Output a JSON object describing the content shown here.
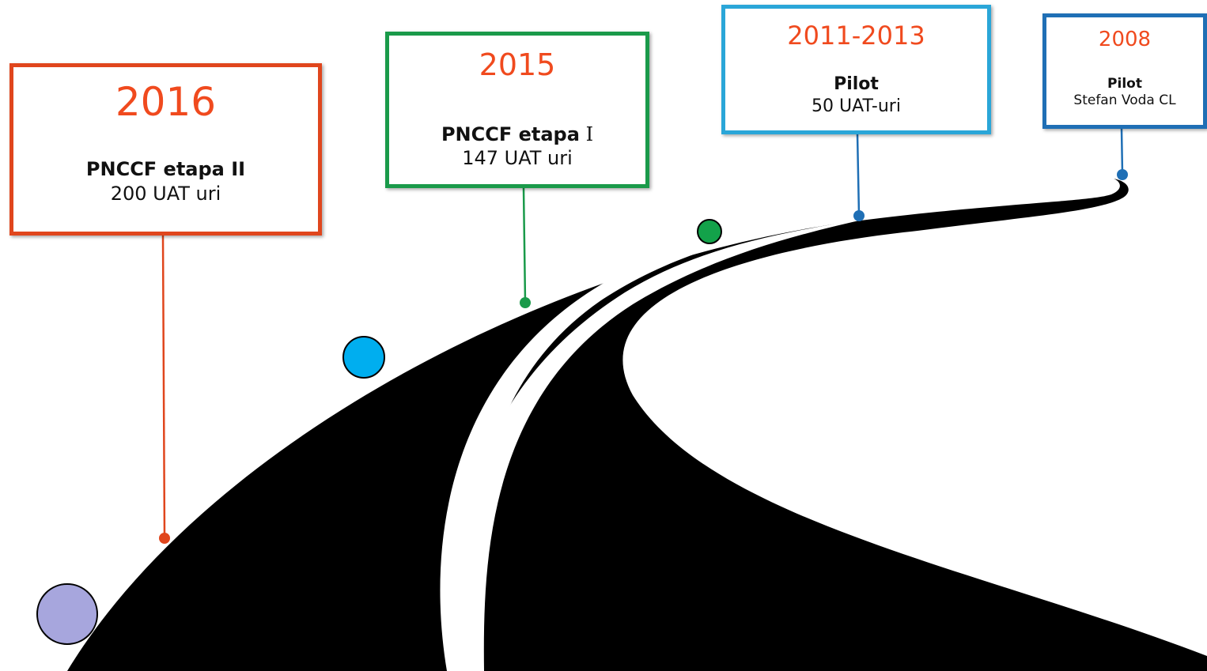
{
  "colors": {
    "road": "#000000",
    "card_2016": "#e0461d",
    "card_2015": "#1a9a4a",
    "card_2011": "#2aa6d8",
    "card_2008": "#1f6fb5",
    "year_text": "#f04a1e",
    "dot_lavender": "#a7a6dd",
    "dot_cyan": "#00aeef",
    "dot_green": "#13a24a"
  },
  "milestones": [
    {
      "id": "2016",
      "year": "2016",
      "title": "PNCCF etapa II",
      "title_suffix": "",
      "subtitle": "200 UAT uri"
    },
    {
      "id": "2015",
      "year": "2015",
      "title": "PNCCF etapa",
      "title_suffix": " I",
      "subtitle": "147 UAT uri"
    },
    {
      "id": "2011",
      "year": "2011-2013",
      "title": "Pilot",
      "title_suffix": "",
      "subtitle": "50 UAT-uri"
    },
    {
      "id": "2008",
      "year": "2008",
      "title": "Pilot",
      "title_suffix": "",
      "subtitle": "Stefan Voda CL"
    }
  ]
}
